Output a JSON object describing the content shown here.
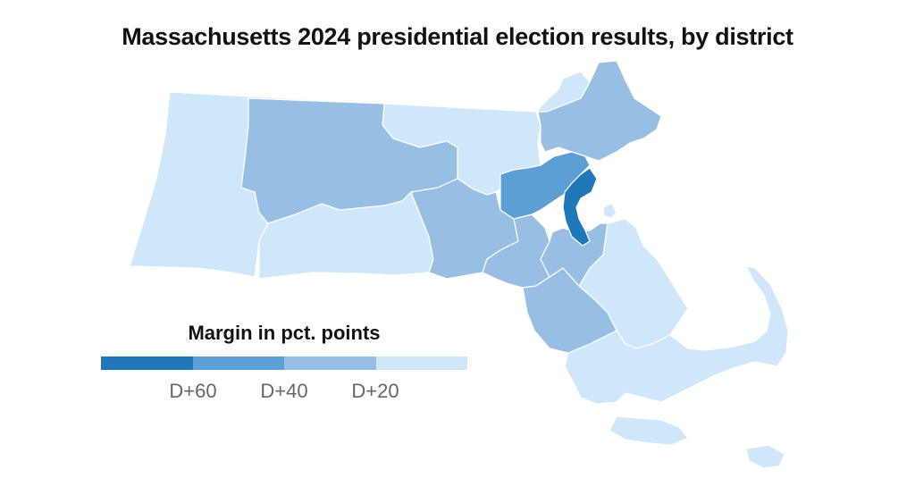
{
  "title": "Massachusetts 2024 presidential election results, by district",
  "legend": {
    "title": "Margin in pct. points",
    "colors": [
      "#1f78b9",
      "#5b9fd4",
      "#97bfe3",
      "#cfe7fb"
    ],
    "ticks": [
      "D+60",
      "D+40",
      "D+20"
    ]
  },
  "district_classes": {
    "D+20 or less": "#cfe7fb",
    "D+20 to D+40": "#97bfe3",
    "D+40 to D+60": "#5b9fd4",
    "D+60 or more": "#1f78b9"
  }
}
